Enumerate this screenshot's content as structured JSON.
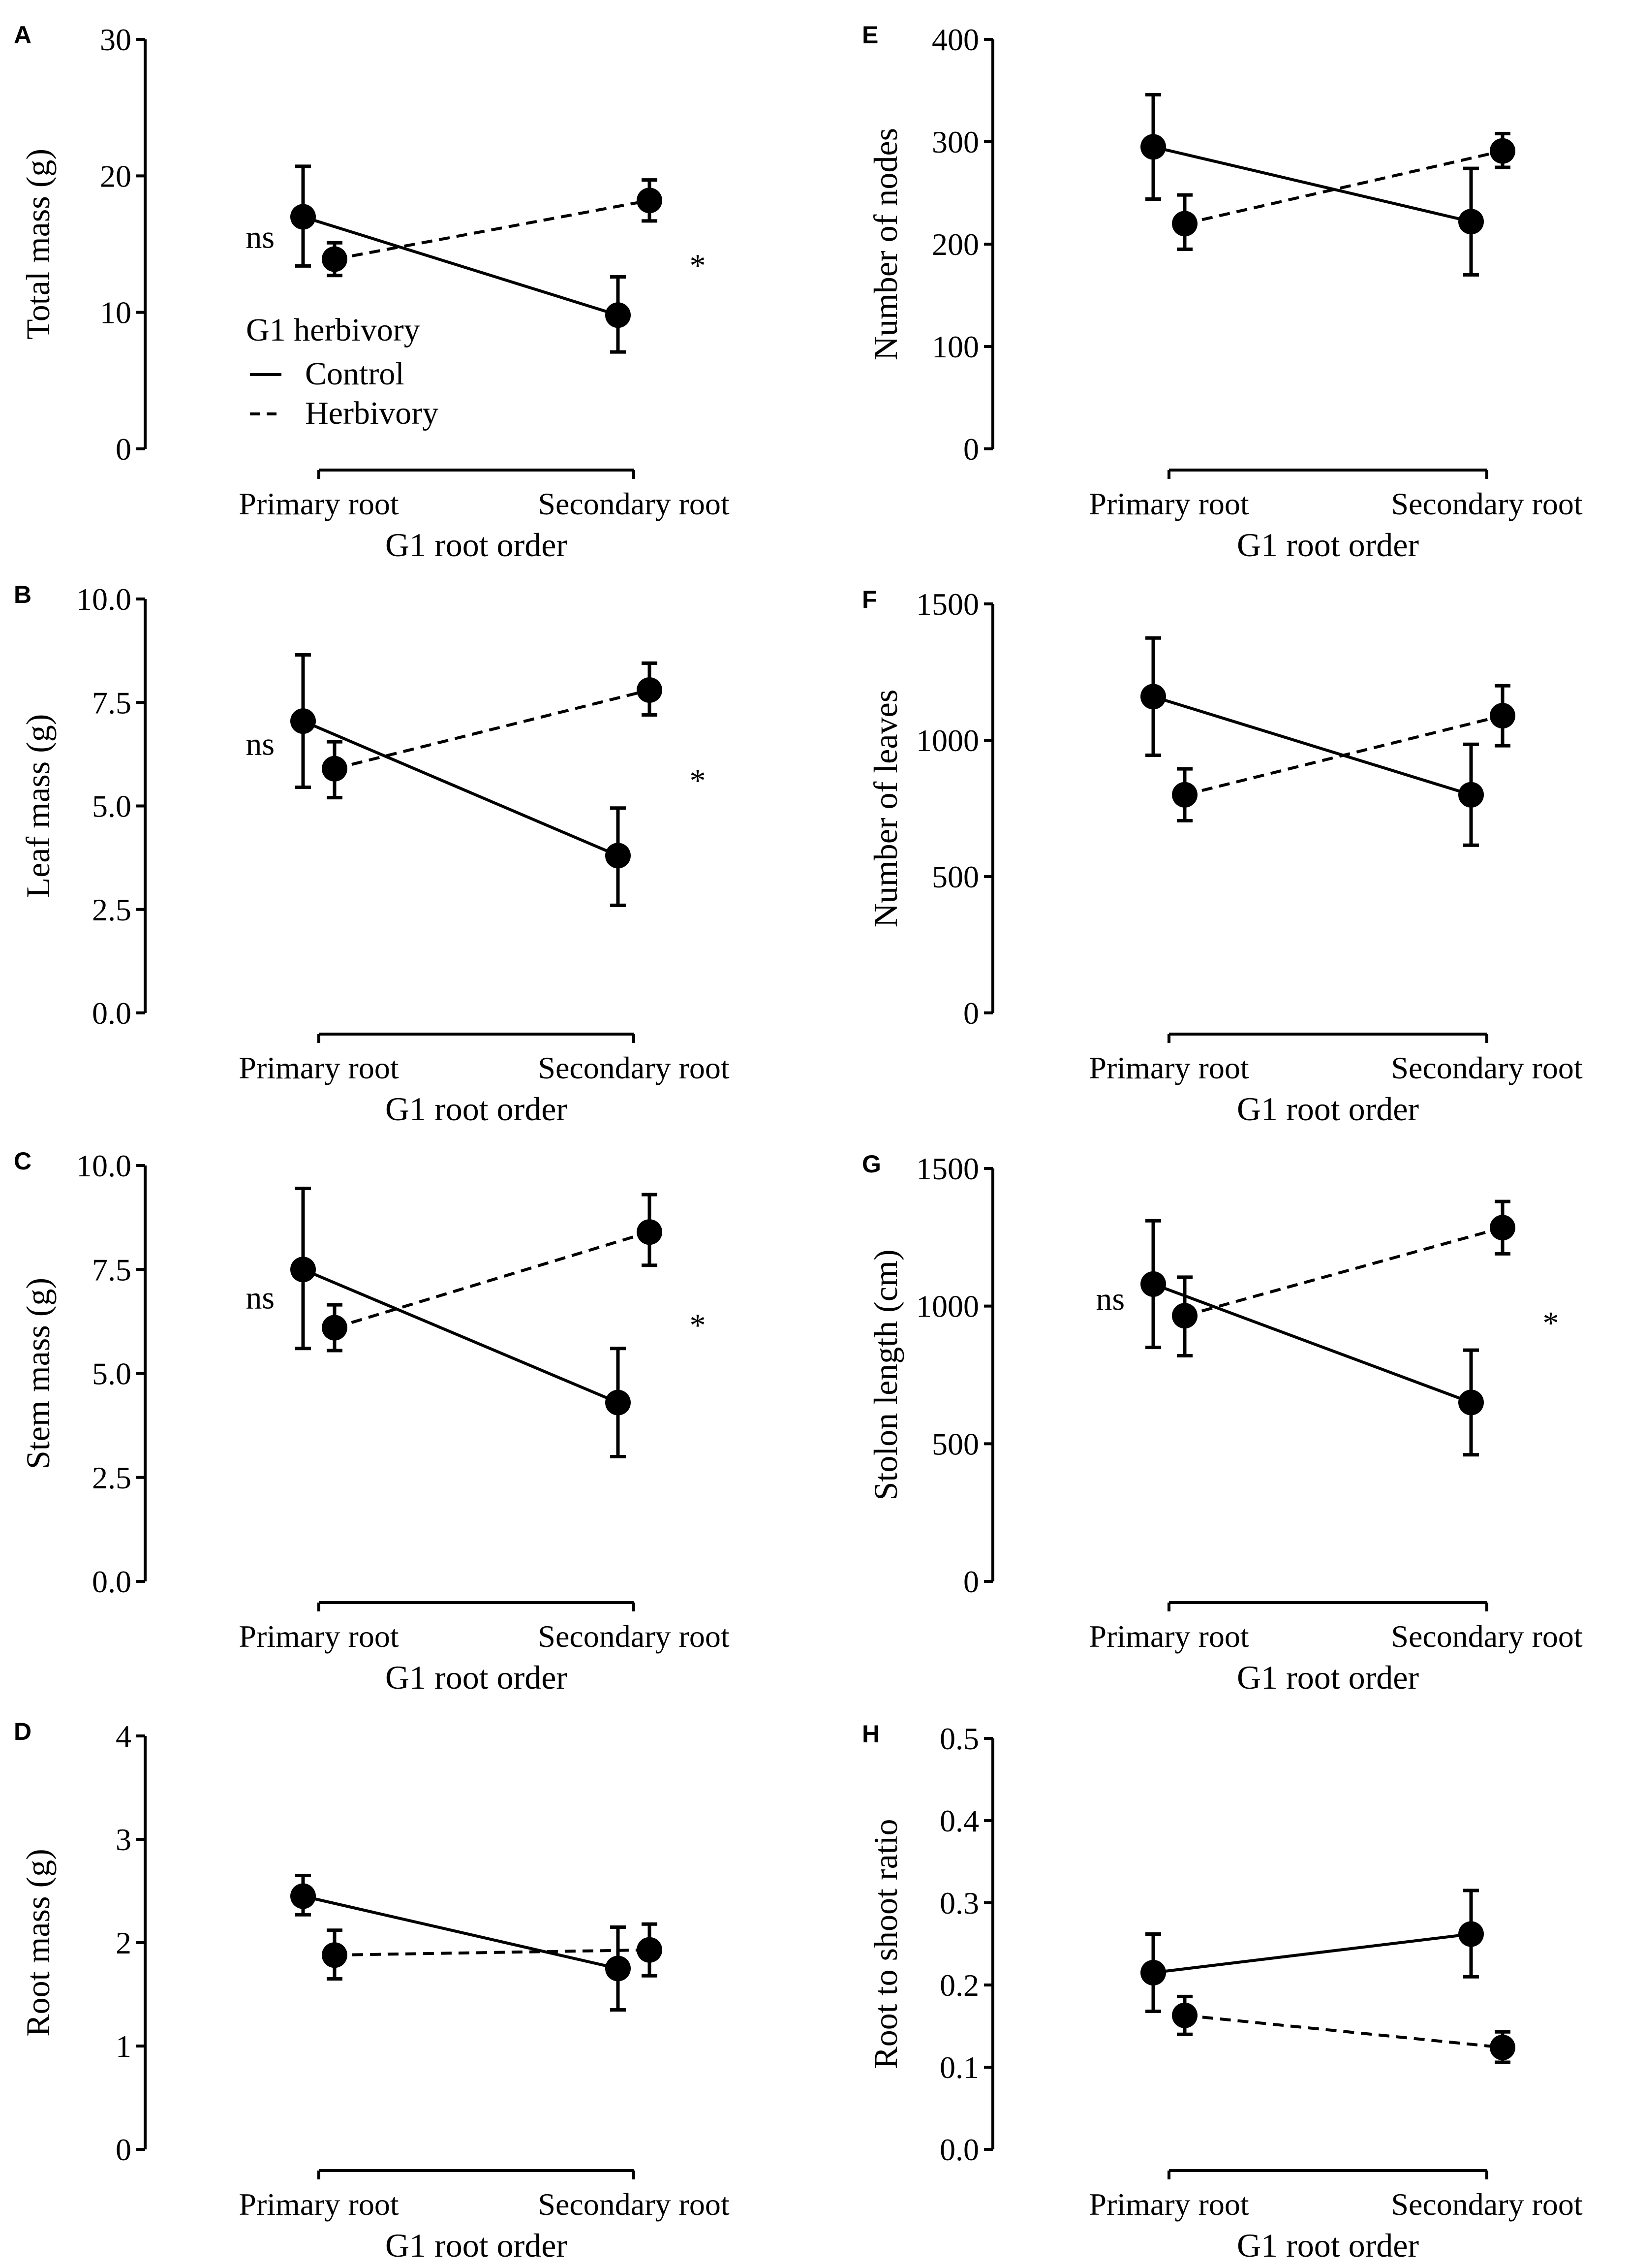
{
  "figure": {
    "legend": {
      "title": "G1 herbivory",
      "entries": [
        {
          "label": "Control",
          "linestyle": "solid"
        },
        {
          "label": "Herbivory",
          "linestyle": "dashed"
        }
      ]
    }
  },
  "chart_data": [
    {
      "panel": "A",
      "type": "line",
      "ylabel": "Total mass (g)",
      "xlabel": "G1 root order",
      "categories": [
        "Primary root",
        "Secondary root"
      ],
      "ylim": [
        0,
        30
      ],
      "yticks": [
        "0",
        "10",
        "20",
        "30"
      ],
      "series": [
        {
          "name": "Control",
          "values": [
            17.0,
            9.8
          ],
          "err_low": [
            13.4,
            7.1
          ],
          "err_high": [
            20.7,
            12.6
          ]
        },
        {
          "name": "Herbivory",
          "values": [
            13.9,
            18.2
          ],
          "err_low": [
            12.7,
            16.7
          ],
          "err_high": [
            15.1,
            19.7
          ]
        }
      ],
      "annotations": {
        "left": "ns",
        "right": "*"
      }
    },
    {
      "panel": "B",
      "type": "line",
      "ylabel": "Leaf mass (g)",
      "xlabel": "G1 root order",
      "categories": [
        "Primary root",
        "Secondary root"
      ],
      "ylim": [
        0,
        10
      ],
      "yticks": [
        "0.0",
        "2.5",
        "5.0",
        "7.5",
        "10.0"
      ],
      "series": [
        {
          "name": "Control",
          "values": [
            7.05,
            3.8
          ],
          "err_low": [
            5.45,
            2.6
          ],
          "err_high": [
            8.65,
            4.95
          ]
        },
        {
          "name": "Herbivory",
          "values": [
            5.9,
            7.8
          ],
          "err_low": [
            5.2,
            7.2
          ],
          "err_high": [
            6.55,
            8.45
          ]
        }
      ],
      "annotations": {
        "left": "ns",
        "right": "*"
      }
    },
    {
      "panel": "C",
      "type": "line",
      "ylabel": "Stem mass (g)",
      "xlabel": "G1 root order",
      "categories": [
        "Primary root",
        "Secondary root"
      ],
      "ylim": [
        0,
        10
      ],
      "yticks": [
        "0.0",
        "2.5",
        "5.0",
        "7.5",
        "10.0"
      ],
      "series": [
        {
          "name": "Control",
          "values": [
            7.5,
            4.3
          ],
          "err_low": [
            5.6,
            3.0
          ],
          "err_high": [
            9.45,
            5.6
          ]
        },
        {
          "name": "Herbivory",
          "values": [
            6.1,
            8.4
          ],
          "err_low": [
            5.55,
            7.6
          ],
          "err_high": [
            6.65,
            9.3
          ]
        }
      ],
      "annotations": {
        "left": "ns",
        "right": "*"
      }
    },
    {
      "panel": "D",
      "type": "line",
      "ylabel": "Root mass (g)",
      "xlabel": "G1 root order",
      "categories": [
        "Primary root",
        "Secondary root"
      ],
      "ylim": [
        0,
        4
      ],
      "yticks": [
        "0",
        "1",
        "2",
        "3",
        "4"
      ],
      "series": [
        {
          "name": "Control",
          "values": [
            2.45,
            1.75
          ],
          "err_low": [
            2.27,
            1.35
          ],
          "err_high": [
            2.65,
            2.15
          ]
        },
        {
          "name": "Herbivory",
          "values": [
            1.88,
            1.93
          ],
          "err_low": [
            1.65,
            1.68
          ],
          "err_high": [
            2.12,
            2.18
          ]
        }
      ],
      "annotations": {
        "left": "",
        "right": ""
      }
    },
    {
      "panel": "E",
      "type": "line",
      "ylabel": "Number of nodes",
      "xlabel": "G1 root order",
      "categories": [
        "Primary root",
        "Secondary root"
      ],
      "ylim": [
        0,
        400
      ],
      "yticks": [
        "0",
        "100",
        "200",
        "300",
        "400"
      ],
      "series": [
        {
          "name": "Control",
          "values": [
            295,
            222
          ],
          "err_low": [
            244,
            170
          ],
          "err_high": [
            346,
            274
          ]
        },
        {
          "name": "Herbivory",
          "values": [
            220,
            291
          ],
          "err_low": [
            195,
            275
          ],
          "err_high": [
            248,
            308
          ]
        }
      ],
      "annotations": {
        "left": "",
        "right": ""
      }
    },
    {
      "panel": "F",
      "type": "line",
      "ylabel": "Number of leaves",
      "xlabel": "G1 root order",
      "categories": [
        "Primary root",
        "Secondary root"
      ],
      "ylim": [
        0,
        1500
      ],
      "yticks": [
        "0",
        "500",
        "1000",
        "1500"
      ],
      "series": [
        {
          "name": "Control",
          "values": [
            1160,
            800
          ],
          "err_low": [
            945,
            615
          ],
          "err_high": [
            1375,
            985
          ]
        },
        {
          "name": "Herbivory",
          "values": [
            800,
            1090
          ],
          "err_low": [
            705,
            980
          ],
          "err_high": [
            895,
            1200
          ]
        }
      ],
      "annotations": {
        "left": "",
        "right": ""
      }
    },
    {
      "panel": "G",
      "type": "line",
      "ylabel": "Stolon length (cm)",
      "xlabel": "G1 root order",
      "categories": [
        "Primary root",
        "Secondary root"
      ],
      "ylim": [
        0,
        1500
      ],
      "yticks": [
        "0",
        "500",
        "1000",
        "1500"
      ],
      "series": [
        {
          "name": "Control",
          "values": [
            1080,
            650
          ],
          "err_low": [
            850,
            460
          ],
          "err_high": [
            1310,
            840
          ]
        },
        {
          "name": "Herbivory",
          "values": [
            965,
            1285
          ],
          "err_low": [
            820,
            1190
          ],
          "err_high": [
            1105,
            1380
          ]
        }
      ],
      "annotations": {
        "left": "ns",
        "right": "*"
      }
    },
    {
      "panel": "H",
      "type": "line",
      "ylabel": "Root to shoot ratio",
      "xlabel": "G1 root order",
      "categories": [
        "Primary root",
        "Secondary root"
      ],
      "ylim": [
        0,
        0.5
      ],
      "yticks": [
        "0.0",
        "0.1",
        "0.2",
        "0.3",
        "0.4",
        "0.5"
      ],
      "series": [
        {
          "name": "Control",
          "values": [
            0.215,
            0.262
          ],
          "err_low": [
            0.168,
            0.21
          ],
          "err_high": [
            0.262,
            0.315
          ]
        },
        {
          "name": "Herbivory",
          "values": [
            0.163,
            0.124
          ],
          "err_low": [
            0.14,
            0.106
          ],
          "err_high": [
            0.186,
            0.143
          ]
        }
      ],
      "annotations": {
        "left": "",
        "right": ""
      }
    }
  ]
}
